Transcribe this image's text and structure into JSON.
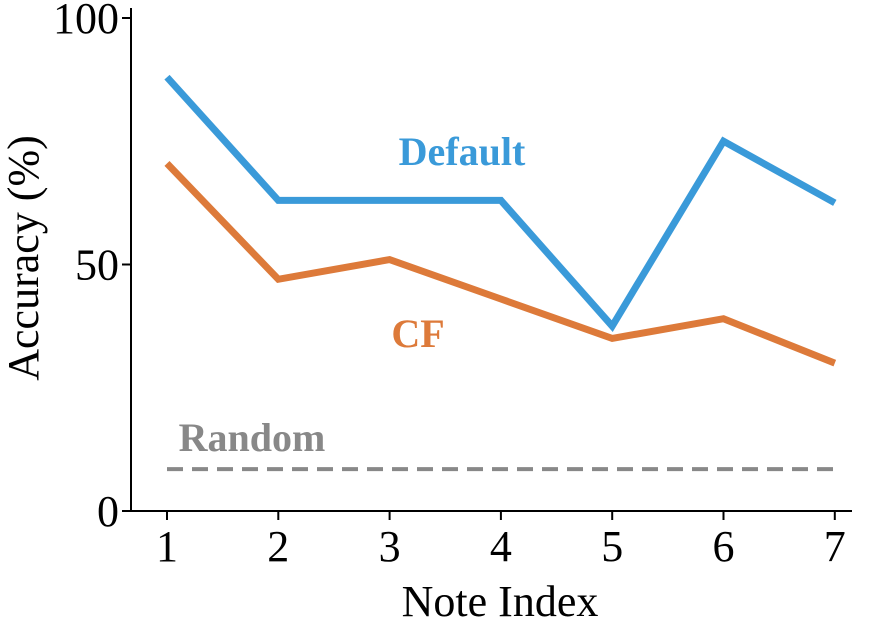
{
  "chart_data": {
    "type": "line",
    "xlabel": "Note Index",
    "ylabel": "Accuracy (%)",
    "x": [
      1,
      2,
      3,
      4,
      5,
      6,
      7
    ],
    "xticks": [
      "1",
      "2",
      "3",
      "4",
      "5",
      "6",
      "7"
    ],
    "ylim": [
      0,
      100
    ],
    "yticks": [
      "0",
      "50",
      "100"
    ],
    "grid": false,
    "series": [
      {
        "name": "Default",
        "color": "#3a9ad9",
        "dashed": false,
        "values": [
          88,
          63,
          63,
          63,
          37.5,
          75,
          62.5
        ]
      },
      {
        "name": "CF",
        "color": "#dd7a3a",
        "dashed": false,
        "values": [
          70.5,
          47,
          51,
          43,
          35,
          39,
          30
        ]
      },
      {
        "name": "Random",
        "color": "#888888",
        "dashed": true,
        "values": [
          8.5,
          8.5,
          8.5,
          8.5,
          8.5,
          8.5,
          8.5
        ]
      }
    ]
  }
}
